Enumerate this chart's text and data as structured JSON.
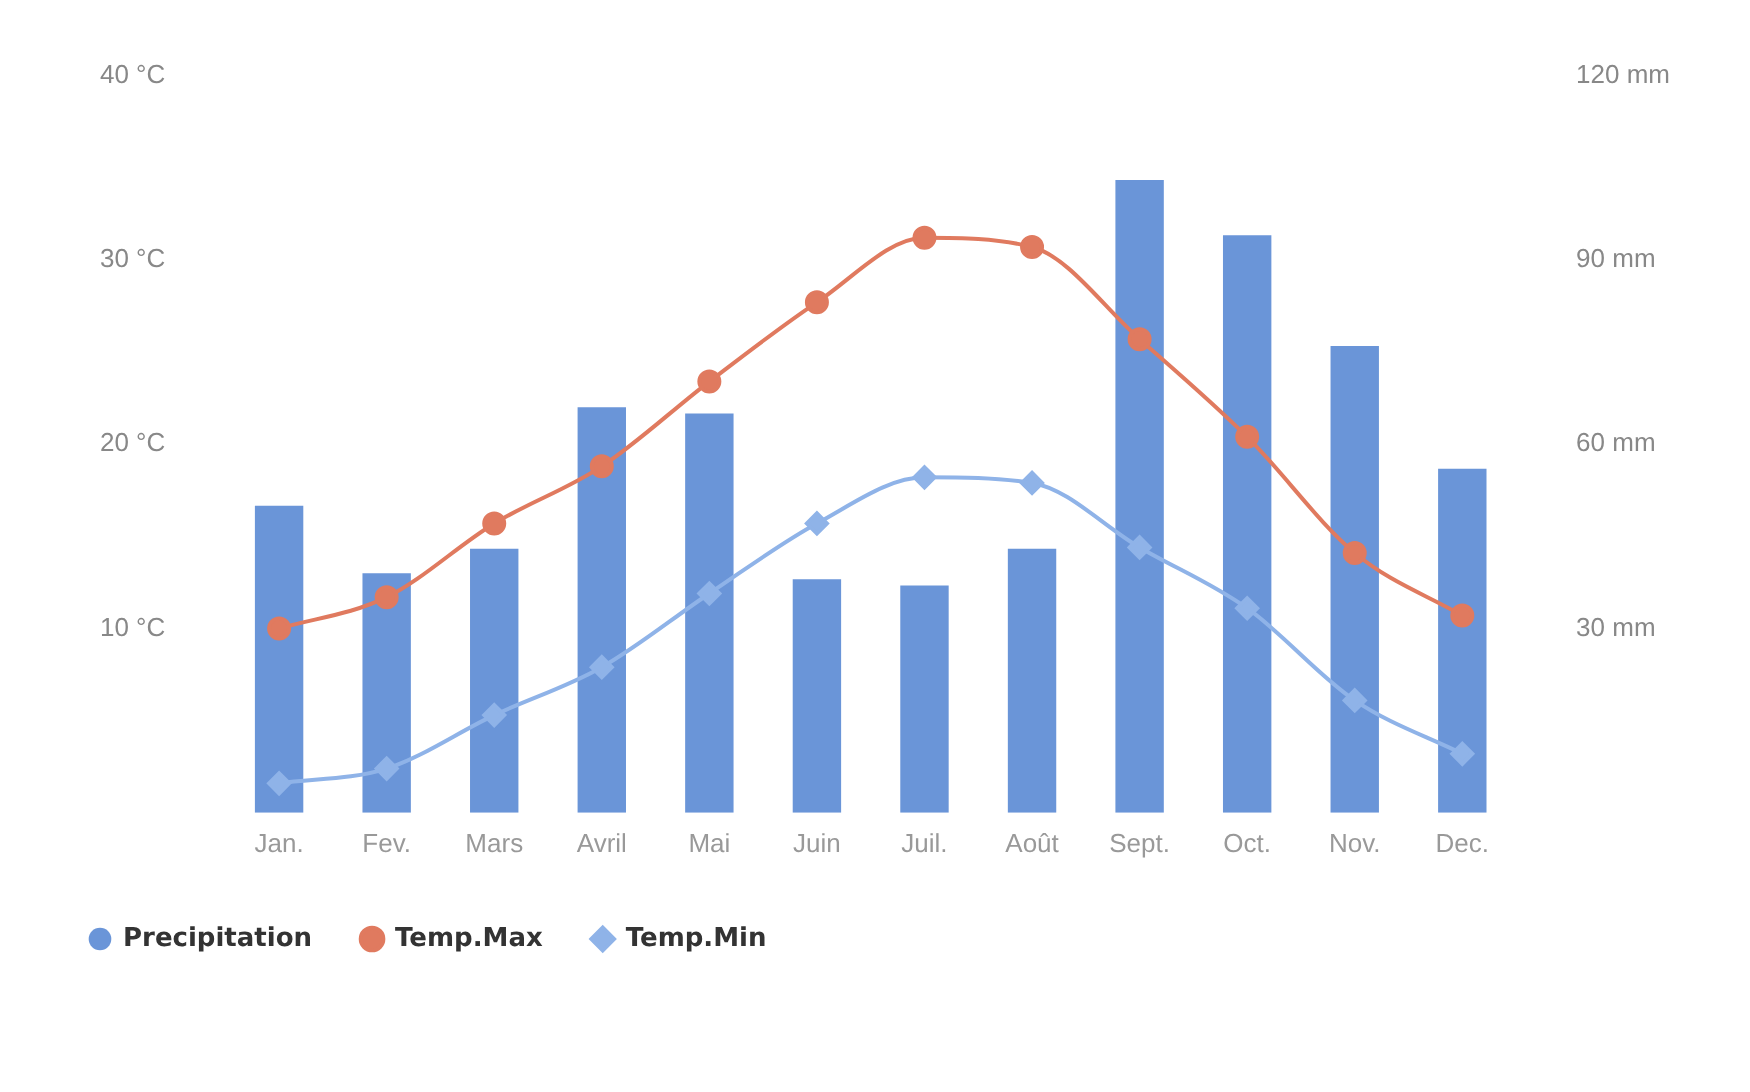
{
  "chart_data": {
    "type": "bar",
    "categories": [
      "Jan.",
      "Fev.",
      "Mars",
      "Avril",
      "Mai",
      "Juin",
      "Juil.",
      "Août",
      "Sept.",
      "Oct.",
      "Nov.",
      "Dec."
    ],
    "series": [
      {
        "name": "Precipitation",
        "axis": "y2",
        "color": "#6a95d8",
        "marker": "circle",
        "values": [
          50,
          39,
          43,
          66,
          65,
          38,
          37,
          43,
          103,
          94,
          76,
          56
        ]
      },
      {
        "name": "Temp.Max",
        "type": "line",
        "axis": "y",
        "color": "#e07a5f",
        "marker": "circle",
        "values": [
          10,
          11.7,
          15.7,
          18.8,
          23.4,
          27.7,
          31.2,
          30.7,
          25.7,
          20.4,
          14.1,
          10.7
        ]
      },
      {
        "name": "Temp.Min",
        "type": "line",
        "axis": "y",
        "color": "#8fb3e8",
        "marker": "diamond",
        "values": [
          1.6,
          2.4,
          5.3,
          7.9,
          11.9,
          15.7,
          18.2,
          17.9,
          14.4,
          11.1,
          6.1,
          3.2
        ]
      }
    ],
    "ylim": [
      0,
      40
    ],
    "yticks": [
      {
        "value": 10,
        "label": "10 °C"
      },
      {
        "value": 20,
        "label": "20 °C"
      },
      {
        "value": 30,
        "label": "30 °C"
      },
      {
        "value": 40,
        "label": "40 °C"
      }
    ],
    "y2lim": [
      0,
      120
    ],
    "y2ticks": [
      {
        "value": 30,
        "label": "30 mm"
      },
      {
        "value": 60,
        "label": "60 mm"
      },
      {
        "value": 90,
        "label": "90 mm"
      },
      {
        "value": 120,
        "label": "120 mm"
      }
    ],
    "grid": false,
    "legend": "bottom left"
  }
}
